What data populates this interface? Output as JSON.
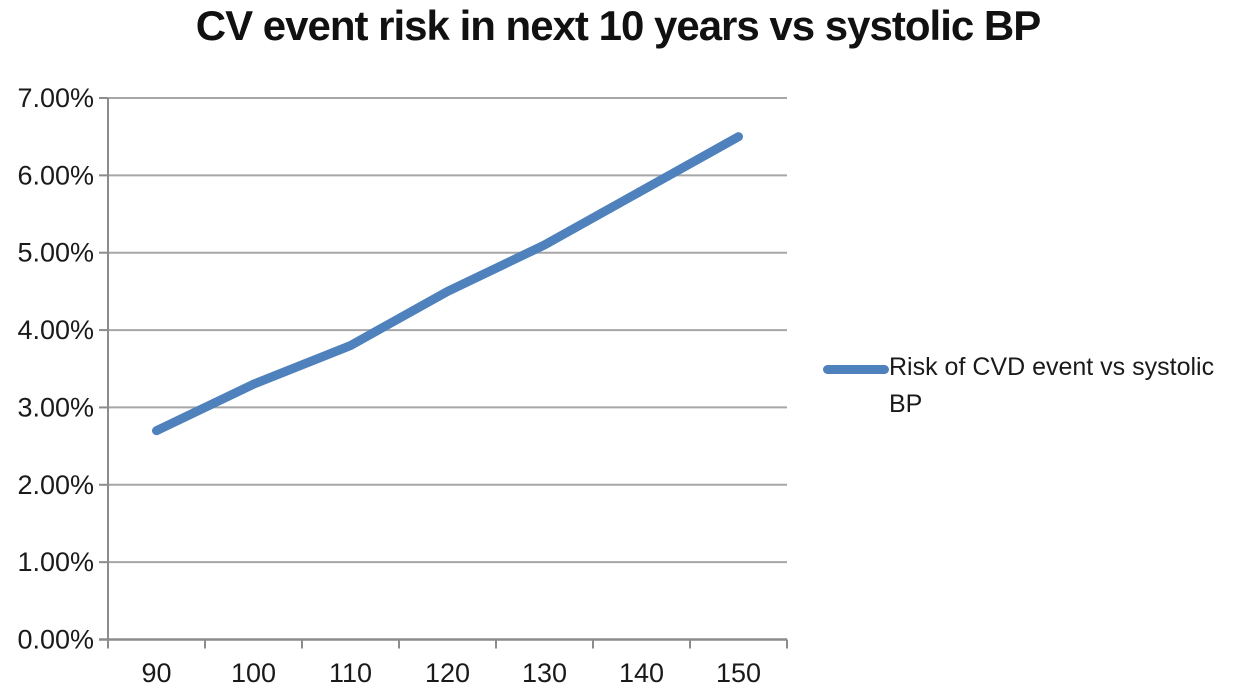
{
  "chart_data": {
    "type": "line",
    "title": "CV event risk in next 10 years vs systolic BP",
    "x": [
      90,
      100,
      110,
      120,
      130,
      140,
      150
    ],
    "x_tick_labels": [
      "90",
      "100",
      "110",
      "120",
      "130",
      "140",
      "150"
    ],
    "series": [
      {
        "name": "Risk of CVD event vs systolic BP",
        "values": [
          2.7,
          3.3,
          3.8,
          4.5,
          5.1,
          5.8,
          6.5
        ],
        "color": "#4F81BD"
      }
    ],
    "xlabel": "",
    "ylabel": "",
    "ylim": [
      0,
      7
    ],
    "y_ticks": [
      {
        "value": 0,
        "label": "0.00%"
      },
      {
        "value": 1,
        "label": "1.00%"
      },
      {
        "value": 2,
        "label": "2.00%"
      },
      {
        "value": 3,
        "label": "3.00%"
      },
      {
        "value": 4,
        "label": "4.00%"
      },
      {
        "value": 5,
        "label": "5.00%"
      },
      {
        "value": 6,
        "label": "6.00%"
      },
      {
        "value": 7,
        "label": "7.00%"
      }
    ],
    "grid": true,
    "legend_position": "right",
    "legend_label": "Risk of CVD event vs systolic BP",
    "colors": {
      "line": "#4F81BD",
      "gridline": "#A6A6A6",
      "axis": "#8C8C8C",
      "text": "#1A1A1A"
    }
  }
}
